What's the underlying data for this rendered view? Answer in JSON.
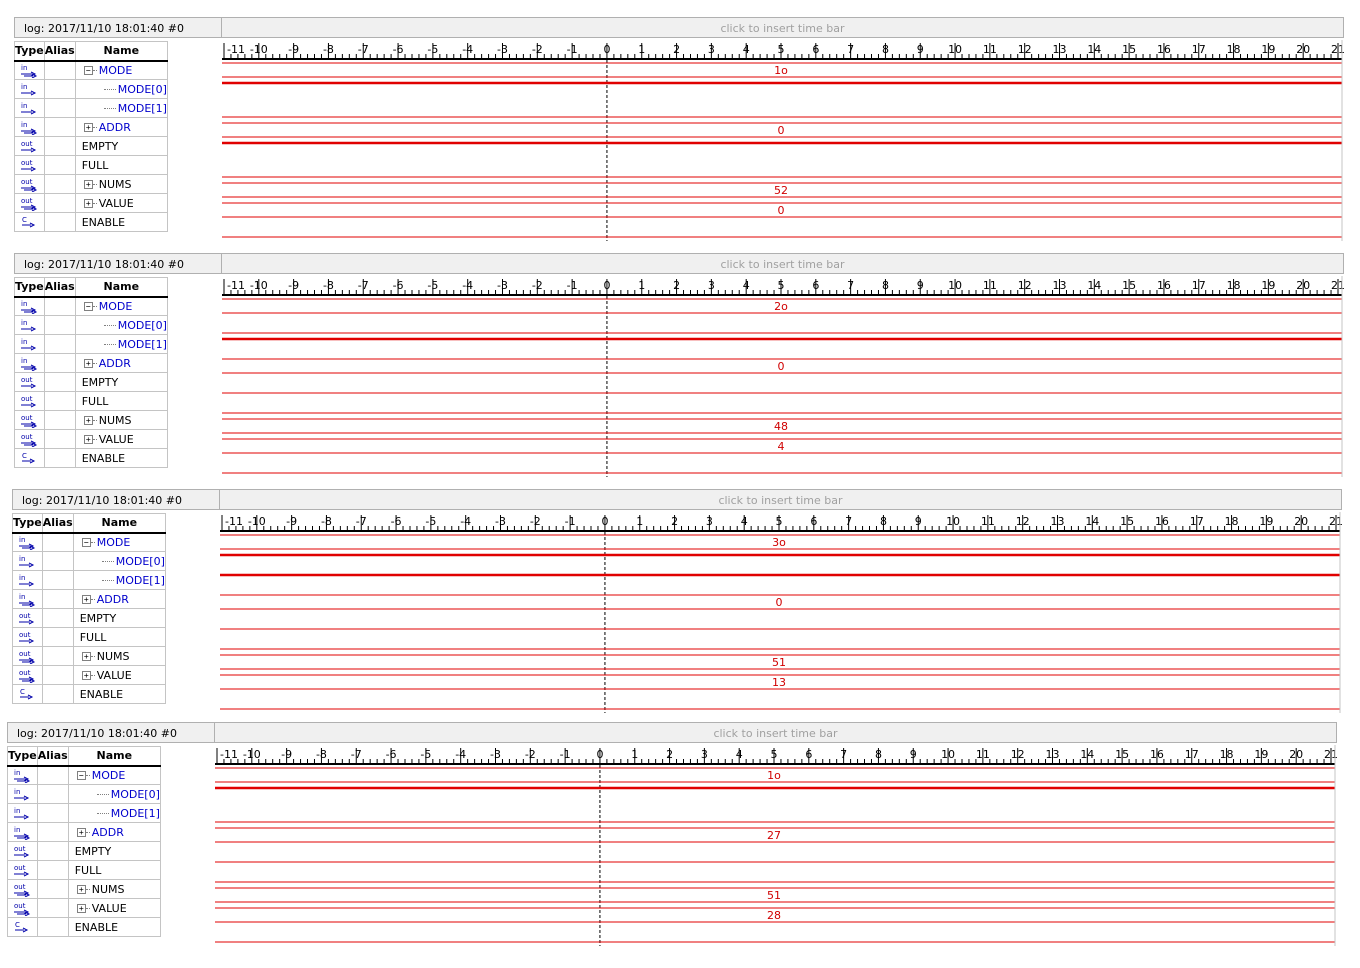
{
  "ruler_ticks": [
    "-11",
    "-10",
    "-9",
    "-8",
    "-7",
    "-6",
    "-5",
    "-4",
    "-3",
    "-2",
    "-1",
    "0",
    "1",
    "2",
    "3",
    "4",
    "5",
    "6",
    "7",
    "8",
    "9",
    "10",
    "11",
    "12",
    "13",
    "14",
    "15",
    "16",
    "17",
    "18",
    "19",
    "20",
    "21"
  ],
  "headers": {
    "type": "Type",
    "alias": "Alias",
    "name": "Name"
  },
  "hint": "click to insert time bar",
  "signal_names": [
    "MODE",
    "MODE[0]",
    "MODE[1]",
    "ADDR",
    "EMPTY",
    "FULL",
    "NUMS",
    "VALUE",
    "ENABLE"
  ],
  "panels": [
    {
      "log": "log: 2017/11/10 18:01:40  #0",
      "values": {
        "MODE": "1o",
        "ADDR": "0",
        "NUMS": "52",
        "VALUE": "0"
      },
      "levels": {
        "MODE[0]": 1,
        "MODE[1]": 0,
        "EMPTY": 1,
        "FULL": 0,
        "ENABLE": 0
      }
    },
    {
      "log": "log: 2017/11/10 18:01:40  #0",
      "values": {
        "MODE": "2o",
        "ADDR": "0",
        "NUMS": "48",
        "VALUE": "4"
      },
      "levels": {
        "MODE[0]": 0,
        "MODE[1]": 1,
        "EMPTY": 0,
        "FULL": 0,
        "ENABLE": 0
      }
    },
    {
      "log": "log: 2017/11/10 18:01:40  #0",
      "values": {
        "MODE": "3o",
        "ADDR": "0",
        "NUMS": "51",
        "VALUE": "13"
      },
      "levels": {
        "MODE[0]": 1,
        "MODE[1]": 1,
        "EMPTY": 0,
        "FULL": 0,
        "ENABLE": 0
      }
    },
    {
      "log": "log: 2017/11/10 18:01:40  #0",
      "values": {
        "MODE": "1o",
        "ADDR": "27",
        "NUMS": "51",
        "VALUE": "28"
      },
      "levels": {
        "MODE[0]": 1,
        "MODE[1]": 0,
        "EMPTY": 0,
        "FULL": 0,
        "ENABLE": 0
      }
    }
  ]
}
